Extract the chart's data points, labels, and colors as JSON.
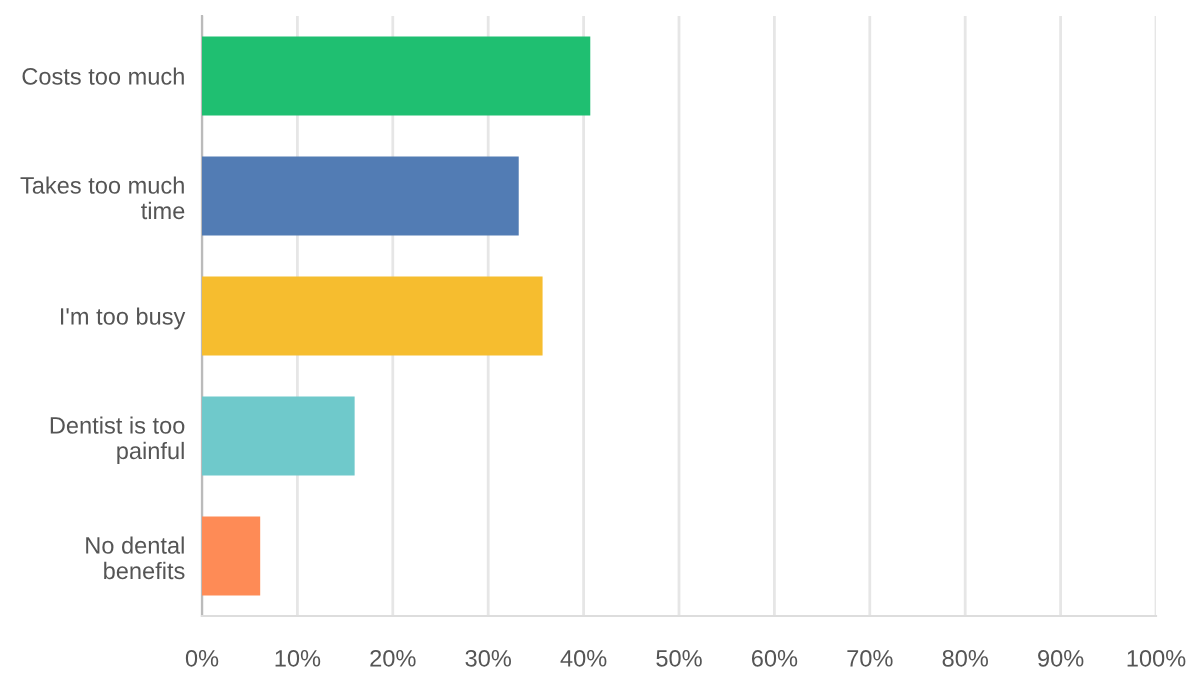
{
  "chart_data": {
    "type": "bar",
    "orientation": "horizontal",
    "categories": [
      "Costs too much",
      "Takes too much\ntime",
      "I'm too busy",
      "Dentist is too\npainful",
      "No dental\nbenefits"
    ],
    "values": [
      40.7,
      33.2,
      35.7,
      16.0,
      6.1
    ],
    "colors": [
      "#1fbf71",
      "#527cb4",
      "#f6bd2f",
      "#6fc9cb",
      "#fe8b56"
    ],
    "xlim": [
      0,
      100
    ],
    "xticks": [
      {
        "value": 0,
        "label": "0%"
      },
      {
        "value": 10,
        "label": "10%"
      },
      {
        "value": 20,
        "label": "20%"
      },
      {
        "value": 30,
        "label": "30%"
      },
      {
        "value": 40,
        "label": "40%"
      },
      {
        "value": 50,
        "label": "50%"
      },
      {
        "value": 60,
        "label": "60%"
      },
      {
        "value": 70,
        "label": "70%"
      },
      {
        "value": 80,
        "label": "80%"
      },
      {
        "value": 90,
        "label": "90%"
      },
      {
        "value": 100,
        "label": "100%"
      }
    ],
    "grid": "x",
    "legend": false
  }
}
